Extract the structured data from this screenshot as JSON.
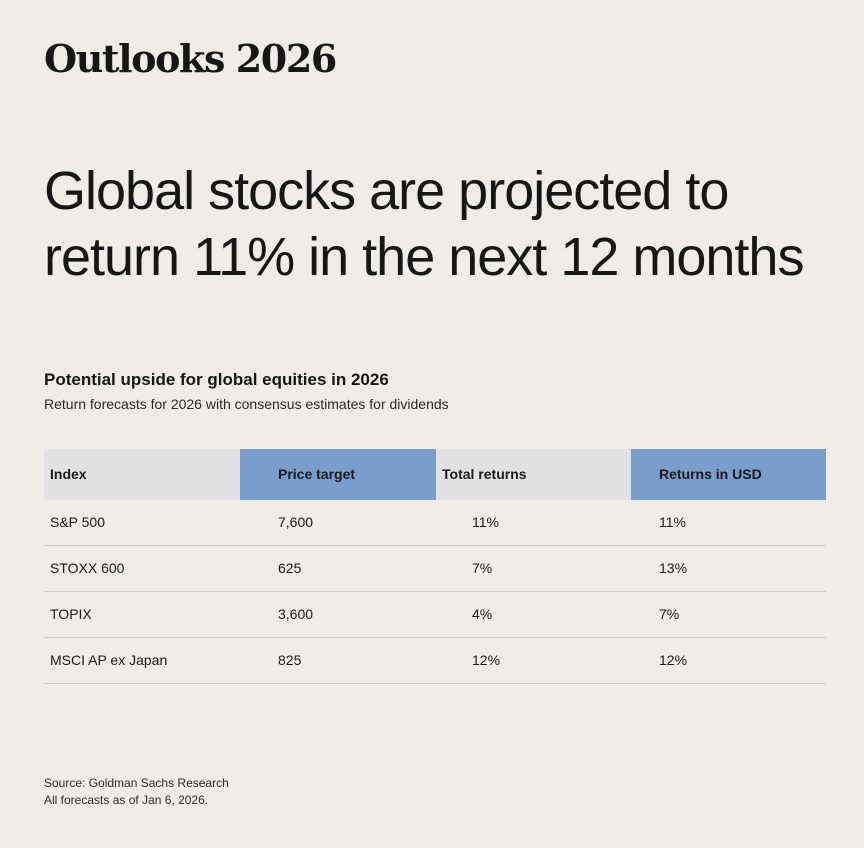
{
  "brand": "Outlooks 2026",
  "headline": {
    "line1": "Global stocks are projected to",
    "line2": "return 11% in the next 12 months"
  },
  "chart_data": {
    "type": "table",
    "title": "Potential upside for global equities in 2026",
    "subtitle": "Return forecasts for 2026 with consensus estimates for dividends",
    "columns": [
      "Index",
      "Price target",
      "Total returns",
      "Returns in USD"
    ],
    "highlighted_columns": [
      1,
      3
    ],
    "header_highlight_color": "#7a9ecb",
    "header_color": "#e3e1e4",
    "rows": [
      [
        "S&P 500",
        "7,600",
        "11%",
        "11%"
      ],
      [
        "STOXX 600",
        "625",
        "7%",
        "13%"
      ],
      [
        "TOPIX",
        "3,600",
        "4%",
        "7%"
      ],
      [
        "MSCI AP ex Japan",
        "825",
        "12%",
        "12%"
      ]
    ]
  },
  "footnote": {
    "source": "Source: Goldman Sachs Research",
    "asof": "All forecasts as of Jan 6, 2026."
  },
  "colors": {
    "background": "#f0ece8",
    "text": "#161616"
  }
}
